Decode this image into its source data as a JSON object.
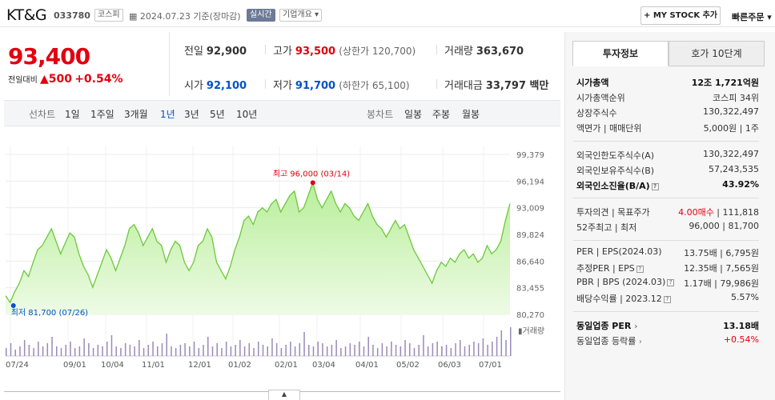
{
  "header": {
    "stock_name": "KT&G",
    "stock_code": "033780",
    "market": "코스피",
    "date_text": "2024.07.23 기준(장마감)",
    "live_label": "실시간",
    "corp_label": "기업개요 ▾",
    "mystock_label": "+ MY STOCK 추가",
    "quick_order_label": "빠른주문 ▾"
  },
  "price": {
    "current": "93,400",
    "diff_label": "전일대비",
    "diff": "▲500",
    "rate": "+0.54%"
  },
  "quote": {
    "prev_label": "전일",
    "prev": "92,900",
    "high_label": "고가",
    "high": "93,500",
    "upper_limit": "(상한가 120,700)",
    "volume_label": "거래량",
    "volume": "363,670",
    "open_label": "시가",
    "open": "92,100",
    "low_label": "저가",
    "low": "91,700",
    "lower_limit": "(하한가 65,100)",
    "amount_label": "거래대금",
    "amount": "33,797 백만"
  },
  "chart_tabs": {
    "line_label": "선차트",
    "periods": [
      "1일",
      "1주일",
      "3개월",
      "1년",
      "3년",
      "5년",
      "10년"
    ],
    "active_period": "1년",
    "candle_label": "봉차트",
    "candles": [
      "일봉",
      "주봉",
      "월봉"
    ]
  },
  "chart_data": {
    "type": "area",
    "title": "",
    "x_ticks": [
      "07/24",
      "09/01",
      "10/04",
      "11/01",
      "12/01",
      "01/02",
      "02/01",
      "03/04",
      "04/01",
      "05/02",
      "06/03",
      "07/01"
    ],
    "y_ticks": [
      "99,379",
      "96,194",
      "93,009",
      "89,824",
      "86,640",
      "83,455",
      "80,270"
    ],
    "ylim": [
      80270,
      99379
    ],
    "max_label": "최고 96,000 (03/14)",
    "min_label": "최저 81,700 (07/26)",
    "volume_label": "거래량",
    "series_prices": [
      82500,
      81700,
      83000,
      84000,
      85500,
      84800,
      86500,
      88000,
      88500,
      89500,
      90500,
      89000,
      87500,
      88800,
      90000,
      89500,
      87500,
      86000,
      85000,
      83500,
      85000,
      86500,
      88000,
      87000,
      85500,
      87000,
      88500,
      90500,
      91000,
      90000,
      88500,
      89500,
      90500,
      89000,
      88500,
      86500,
      88000,
      89000,
      88500,
      86500,
      85500,
      86500,
      88500,
      89000,
      90500,
      89500,
      86500,
      85500,
      84500,
      86000,
      88000,
      89500,
      91500,
      92000,
      91000,
      92500,
      93000,
      92500,
      93500,
      94000,
      92500,
      93500,
      94500,
      95000,
      92500,
      93000,
      94500,
      96000,
      94000,
      93000,
      94000,
      95000,
      93500,
      92500,
      93500,
      93000,
      92000,
      91500,
      92500,
      93500,
      92000,
      91000,
      90500,
      89500,
      90500,
      91500,
      90500,
      91000,
      89500,
      88000,
      87000,
      86000,
      85000,
      84000,
      85500,
      86500,
      86000,
      87000,
      86500,
      87500,
      88000,
      87000,
      87500,
      86500,
      87000,
      88500,
      87500,
      88000,
      89000,
      91500,
      93500
    ],
    "series_volume": [
      5,
      8,
      4,
      6,
      10,
      7,
      5,
      9,
      6,
      8,
      12,
      6,
      5,
      7,
      9,
      5,
      6,
      11,
      8,
      5,
      7,
      6,
      9,
      13,
      6,
      5,
      8,
      7,
      6,
      10,
      5,
      7,
      9,
      6,
      8,
      14,
      6,
      5,
      7,
      8,
      6,
      9,
      5,
      7,
      12,
      6,
      8,
      5,
      9,
      6,
      7,
      10,
      6,
      8,
      5,
      9,
      7,
      6,
      11,
      8,
      5,
      7,
      9,
      6,
      8,
      15,
      7,
      6,
      9,
      8,
      6,
      7,
      10,
      5,
      6,
      8,
      7,
      9,
      6,
      12,
      7,
      5,
      8,
      6,
      9,
      7,
      6,
      10,
      8,
      5,
      7,
      13,
      6,
      8,
      9,
      6,
      7,
      5,
      8,
      10,
      6,
      7,
      9,
      8,
      11,
      7,
      9,
      12,
      16,
      10,
      18
    ]
  },
  "side": {
    "tab_invest": "투자정보",
    "tab_hoga": "호가 10단계",
    "rows1": [
      {
        "k": "시가총액",
        "v": "12조 1,721억원"
      },
      {
        "k": "시가총액순위",
        "v": "코스피 34위"
      },
      {
        "k": "상장주식수",
        "v": "130,322,497"
      },
      {
        "k": "액면가 | 매매단위",
        "v": "5,000원 | 1주"
      }
    ],
    "rows2": [
      {
        "k": "외국인한도주식수(A)",
        "v": "130,322,497"
      },
      {
        "k": "외국인보유주식수(B)",
        "v": "57,243,535"
      },
      {
        "k": "외국인소진율(B/A)",
        "v": "43.92%"
      }
    ],
    "rows3": [
      {
        "k": "투자의견 | 목표주가",
        "v1": "4.00매수",
        "v2": " | 111,818"
      },
      {
        "k": "52주최고 | 최저",
        "v": "96,000 | 81,700"
      }
    ],
    "rows4": [
      {
        "k": "PER | EPS(2024.03)",
        "v": "13.75배 | 6,795원"
      },
      {
        "k": "추정PER | EPS",
        "v": "12.35배 | 7,565원"
      },
      {
        "k": "PBR | BPS (2024.03)",
        "v": "1.17배 | 79,986원"
      },
      {
        "k": "배당수익률 | 2023.12",
        "v": "5.57%"
      }
    ],
    "rows5": [
      {
        "k": "동일업종 PER",
        "v": "13.18배"
      },
      {
        "k": "동일업종 등락률",
        "v": "+0.54%"
      }
    ]
  }
}
